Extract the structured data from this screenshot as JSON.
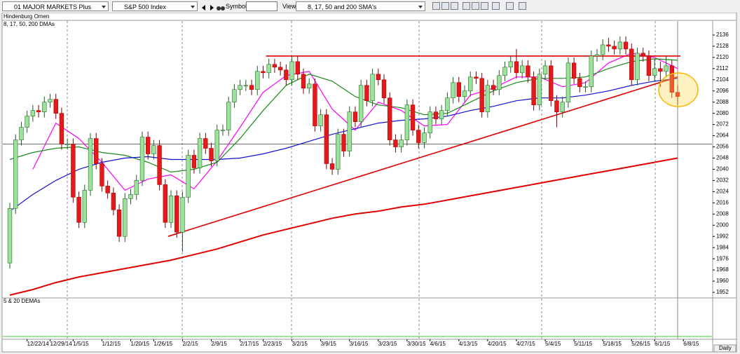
{
  "toolbar": {
    "group": "01 MAJOR MARKETS Plus",
    "index": "S&P 500 Index",
    "symbol_label": "Symbol:",
    "view_label": "View:",
    "view": "8, 17, 50 and 200 SMA's"
  },
  "panel_label": "Hindenburg Omen",
  "chart_data": {
    "type": "candlestick",
    "title": "8, 17, 50, 200 DMAs",
    "categories": [
      null,
      null,
      null,
      "12/22/14",
      null,
      null,
      null,
      "12/29/14",
      null,
      null,
      null,
      "1/5/15",
      null,
      null,
      null,
      null,
      "1/12/15",
      null,
      null,
      null,
      null,
      "1/20/15",
      null,
      null,
      null,
      "1/26/15",
      null,
      null,
      null,
      null,
      "2/2/15",
      null,
      null,
      null,
      null,
      "2/9/15",
      null,
      null,
      null,
      null,
      "2/17/15",
      null,
      null,
      null,
      "2/23/15",
      null,
      null,
      null,
      null,
      "3/2/15",
      null,
      null,
      null,
      null,
      "3/9/15",
      null,
      null,
      null,
      null,
      "3/16/15",
      null,
      null,
      null,
      null,
      "3/23/15",
      null,
      null,
      null,
      null,
      "3/30/15",
      null,
      null,
      null,
      "4/6/15",
      null,
      null,
      null,
      null,
      "4/13/15",
      null,
      null,
      null,
      null,
      "4/20/15",
      null,
      null,
      null,
      null,
      "4/27/15",
      null,
      null,
      null,
      null,
      "5/4/15",
      null,
      null,
      null,
      null,
      "5/11/15",
      null,
      null,
      null,
      null,
      "5/18/15",
      null,
      null,
      null,
      null,
      "5/26/15",
      null,
      null,
      null,
      "6/1/15",
      null,
      null,
      null,
      null,
      "6/8/15"
    ],
    "open": [
      1973,
      2012,
      2061,
      2070,
      2078,
      2082,
      2081,
      2088,
      2090,
      2080,
      2058,
      2058,
      2020,
      2002,
      2025,
      2062,
      2044,
      2028,
      2023,
      2011,
      1992,
      2019,
      2022,
      2032,
      2063,
      2051,
      2057,
      2029,
      2002,
      2021,
      1995,
      2020,
      2050,
      2041,
      2062,
      2055,
      2046,
      2068,
      2068,
      2088,
      2097,
      2100,
      2100,
      2097,
      2110,
      2109,
      2115,
      2113,
      2111,
      2104,
      2117,
      2108,
      2098,
      2101,
      2071,
      2079,
      2044,
      2040,
      2065,
      2053,
      2081,
      2074,
      2100,
      2089,
      2108,
      2104,
      2091,
      2061,
      2056,
      2061,
      2086,
      2068,
      2059,
      2066,
      2081,
      2076,
      2082,
      2091,
      2102,
      2092,
      2096,
      2106,
      2105,
      2081,
      2100,
      2097,
      2107,
      2113,
      2117,
      2109,
      2114,
      2106,
      2086,
      2108,
      2114,
      2089,
      2081,
      2088,
      2116,
      2105,
      2099,
      2099,
      2121,
      2122,
      2129,
      2128,
      2126,
      2131,
      2126,
      2104,
      2123,
      2121,
      2107,
      2112,
      2110,
      2114,
      2095,
      null
    ],
    "high": [
      2016,
      2065,
      2074,
      2082,
      2086,
      2086,
      2092,
      2094,
      2094,
      2084,
      2062,
      2062,
      2024,
      2029,
      2066,
      2066,
      2048,
      2032,
      2027,
      2015,
      2023,
      2026,
      2036,
      2067,
      2067,
      2061,
      2061,
      2033,
      2025,
      2025,
      2024,
      2054,
      2054,
      2066,
      2066,
      2059,
      2072,
      2072,
      2092,
      2101,
      2104,
      2104,
      2104,
      2114,
      2114,
      2119,
      2119,
      2117,
      2115,
      2121,
      2121,
      2112,
      2105,
      2105,
      2083,
      2083,
      2048,
      2069,
      2069,
      2085,
      2085,
      2104,
      2104,
      2112,
      2112,
      2108,
      2095,
      2065,
      2065,
      2090,
      2090,
      2072,
      2070,
      2085,
      2085,
      2086,
      2095,
      2106,
      2106,
      2100,
      2110,
      2110,
      2109,
      2104,
      2104,
      2111,
      2117,
      2121,
      2126,
      2118,
      2118,
      2110,
      2112,
      2118,
      2118,
      2093,
      2092,
      2120,
      2120,
      2109,
      2103,
      2125,
      2126,
      2133,
      2134,
      2132,
      2135,
      2135,
      2130,
      2127,
      2127,
      2125,
      2119,
      2117,
      2121,
      2118,
      2100,
      null
    ],
    "low": [
      1969,
      2008,
      2057,
      2066,
      2074,
      2077,
      2077,
      2084,
      2076,
      2054,
      2054,
      2016,
      1998,
      1998,
      2021,
      2040,
      2024,
      2019,
      2007,
      1988,
      1988,
      2015,
      2018,
      2028,
      2047,
      2047,
      2025,
      1998,
      1998,
      1991,
      1981,
      2016,
      2037,
      2037,
      2051,
      2042,
      2042,
      2064,
      2064,
      2084,
      2093,
      2096,
      2093,
      2093,
      2105,
      2105,
      2109,
      2107,
      2100,
      2100,
      2104,
      2094,
      2094,
      2067,
      2067,
      2040,
      2036,
      2036,
      2049,
      2049,
      2070,
      2070,
      2085,
      2085,
      2100,
      2087,
      2057,
      2052,
      2052,
      2057,
      2064,
      2055,
      2055,
      2062,
      2072,
      2072,
      2078,
      2087,
      2088,
      2088,
      2092,
      2101,
      2077,
      2077,
      2093,
      2093,
      2103,
      2109,
      2105,
      2105,
      2102,
      2082,
      2082,
      2104,
      2085,
      2070,
      2077,
      2084,
      2101,
      2095,
      2095,
      2095,
      2117,
      2118,
      2124,
      2122,
      2122,
      2122,
      2100,
      2100,
      2117,
      2103,
      2103,
      2099,
      2106,
      2091,
      2086,
      null
    ],
    "close": [
      2012,
      2061,
      2070,
      2078,
      2082,
      2081,
      2088,
      2090,
      2080,
      2058,
      2058,
      2020,
      2002,
      2025,
      2062,
      2044,
      2028,
      2023,
      2011,
      1992,
      2019,
      2022,
      2032,
      2063,
      2051,
      2057,
      2029,
      2002,
      2021,
      1995,
      2020,
      2050,
      2041,
      2062,
      2055,
      2046,
      2068,
      2068,
      2088,
      2097,
      2100,
      2100,
      2097,
      2110,
      2109,
      2115,
      2113,
      2111,
      2104,
      2117,
      2108,
      2098,
      2101,
      2071,
      2079,
      2044,
      2040,
      2065,
      2053,
      2081,
      2074,
      2100,
      2089,
      2108,
      2104,
      2091,
      2061,
      2056,
      2061,
      2086,
      2068,
      2059,
      2066,
      2081,
      2076,
      2082,
      2091,
      2102,
      2092,
      2096,
      2106,
      2105,
      2081,
      2100,
      2097,
      2107,
      2113,
      2117,
      2109,
      2114,
      2106,
      2086,
      2108,
      2114,
      2089,
      2081,
      2088,
      2116,
      2105,
      2099,
      2099,
      2121,
      2122,
      2129,
      2128,
      2126,
      2131,
      2126,
      2104,
      2123,
      2121,
      2107,
      2112,
      2110,
      2114,
      2095,
      2092,
      null
    ],
    "up_color": "#9be39b",
    "down_color": "#e31a1a",
    "series": [
      {
        "color": "#ff00ff",
        "x": [
          4,
          8,
          12,
          16,
          20,
          24,
          28,
          32,
          36,
          40,
          44,
          48,
          52,
          56,
          60,
          64,
          68,
          72,
          76,
          80,
          84,
          88,
          92,
          96,
          100,
          104,
          108,
          112,
          116
        ],
        "values": [
          2040,
          2073,
          2062,
          2045,
          2025,
          2033,
          2036,
          2026,
          2046,
          2070,
          2095,
          2107,
          2110,
          2083,
          2068,
          2088,
          2082,
          2071,
          2072,
          2093,
          2098,
          2106,
          2106,
          2099,
          2102,
          2116,
          2123,
          2120,
          2112
        ]
      },
      {
        "color": "#1a8a1a",
        "x": [
          0,
          4,
          8,
          12,
          16,
          20,
          24,
          28,
          32,
          36,
          40,
          44,
          48,
          52,
          56,
          60,
          64,
          68,
          72,
          76,
          80,
          84,
          88,
          92,
          96,
          100,
          104,
          108,
          112,
          116
        ],
        "values": [
          2047,
          2052,
          2055,
          2056,
          2052,
          2050,
          2045,
          2038,
          2040,
          2045,
          2062,
          2082,
          2100,
          2108,
          2103,
          2092,
          2086,
          2084,
          2079,
          2080,
          2088,
          2096,
          2102,
          2105,
          2105,
          2106,
          2112,
          2117,
          2119,
          2118
        ]
      },
      {
        "color": "#1010d0",
        "x": [
          0,
          4,
          8,
          12,
          16,
          20,
          24,
          28,
          32,
          36,
          40,
          44,
          48,
          52,
          56,
          60,
          64,
          68,
          72,
          76,
          80,
          84,
          88,
          92,
          96,
          100,
          104,
          108,
          112,
          116
        ],
        "values": [
          2010,
          2022,
          2032,
          2040,
          2045,
          2048,
          2049,
          2047,
          2047,
          2047,
          2048,
          2051,
          2055,
          2060,
          2065,
          2069,
          2073,
          2075,
          2076,
          2078,
          2082,
          2085,
          2089,
          2091,
          2091,
          2093,
          2096,
          2100,
          2103,
          2105
        ]
      },
      {
        "color": "#e00000",
        "x": [
          0,
          4,
          8,
          12,
          16,
          20,
          24,
          28,
          32,
          36,
          40,
          44,
          48,
          52,
          56,
          60,
          64,
          68,
          72,
          76,
          80,
          84,
          88,
          92,
          96,
          100,
          104,
          108,
          112,
          116
        ],
        "values": [
          1950,
          1954,
          1959,
          1963,
          1966,
          1969,
          1972,
          1975,
          1979,
          1983,
          1988,
          1993,
          1997,
          2001,
          2005,
          2008,
          2010,
          2013,
          2015,
          2018,
          2021,
          2024,
          2027,
          2030,
          2033,
          2036,
          2039,
          2042,
          2045,
          2048
        ]
      }
    ],
    "trendlines": [
      {
        "color": "#e00000",
        "x": [
          44.5,
          116.5
        ],
        "values": [
          2121,
          2121
        ]
      },
      {
        "color": "#e00000",
        "x": [
          27.5,
          116
        ],
        "values": [
          1992,
          2106
        ]
      }
    ],
    "price_line": 2058,
    "ylim": [
      1948,
      2146
    ],
    "yticks": [
      1952,
      1960,
      1968,
      1976,
      1984,
      1992,
      2000,
      2008,
      2016,
      2024,
      2032,
      2040,
      2048,
      2056,
      2064,
      2072,
      2080,
      2088,
      2096,
      2104,
      2112,
      2120,
      2128,
      2136
    ],
    "lower_panel_title": "5 & 20 DEMAs",
    "timeframe": "Daily"
  }
}
